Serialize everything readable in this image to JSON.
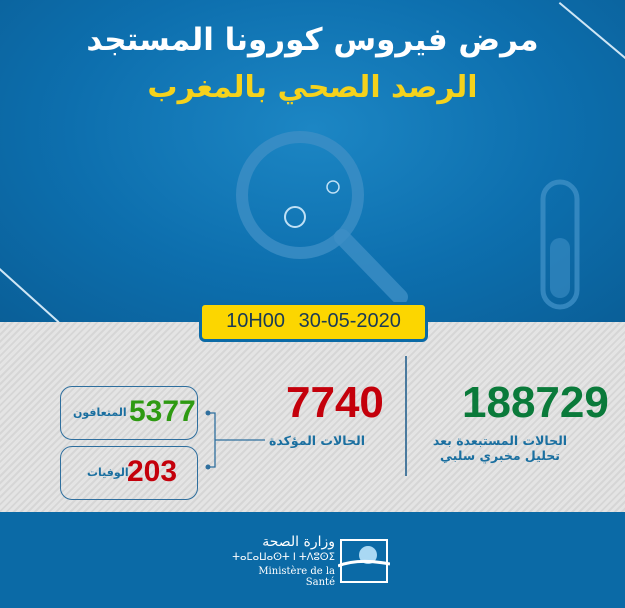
{
  "header": {
    "title": "مرض فيروس كورونا المستجد",
    "subtitle": "الرصد الصحي بالمغرب"
  },
  "timestamp": {
    "time": "10H00",
    "date": "30-05-2020"
  },
  "stats": {
    "excluded": {
      "value": "188729",
      "label_line1": "الحالات المستبعدة بعد",
      "label_line2": "تحليل مخبري سلبي",
      "color": "#0a7a3a"
    },
    "confirmed": {
      "value": "7740",
      "label": "الحالات المؤكدة",
      "color": "#c4000b"
    },
    "recovered": {
      "value": "5377",
      "label": "المتعافون",
      "color": "#2e9a12"
    },
    "deaths": {
      "value": "203",
      "label": "الوفيات",
      "color": "#c4000b"
    }
  },
  "footer": {
    "ministry_ar": "وزارة الصحة",
    "ministry_tifinagh": "ⵜⴰⵎⴰⵡⴰⵙⵜ ⵏ ⵜⴷⵓⵙⵉ",
    "ministry_fr": "Ministère de la Santé"
  }
}
